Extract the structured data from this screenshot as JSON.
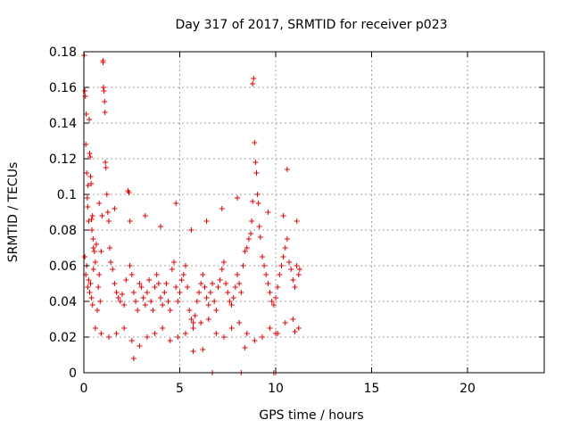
{
  "chart_data": {
    "type": "scatter",
    "title": "Day 317 of 2017, SRMTID for receiver p023",
    "xlabel": "GPS time / hours",
    "ylabel": "SRMTID / TECUs",
    "xlim": [
      0,
      24
    ],
    "ylim": [
      0,
      0.18
    ],
    "x_ticks": [
      0,
      5,
      10,
      15,
      20
    ],
    "x_tick_labels": [
      "0",
      "5",
      "10",
      "15",
      "20"
    ],
    "y_ticks": [
      0,
      0.02,
      0.04,
      0.06,
      0.08,
      0.1,
      0.12,
      0.14,
      0.16,
      0.18
    ],
    "y_tick_labels": [
      "0",
      "0.02",
      "0.04",
      "0.06",
      "0.08",
      "0.1",
      "0.12",
      "0.14",
      "0.16",
      "0.18"
    ],
    "grid": true,
    "marker": "+",
    "color": "#e00000",
    "series": [
      {
        "name": "SRMTID",
        "x": [
          0.02,
          0.05,
          0.08,
          0.1,
          0.12,
          0.15,
          0.18,
          0.2,
          0.22,
          0.25,
          0.28,
          0.3,
          0.33,
          0.35,
          0.38,
          0.4,
          0.42,
          0.45,
          0.48,
          0.5,
          0.05,
          0.1,
          0.15,
          0.2,
          0.25,
          0.3,
          0.35,
          0.4,
          0.45,
          0.5,
          0.55,
          0.6,
          0.65,
          0.7,
          0.75,
          0.8,
          0.85,
          0.9,
          0.95,
          1.0,
          1.0,
          1.02,
          1.05,
          1.08,
          1.1,
          1.12,
          1.15,
          1.2,
          1.25,
          1.3,
          1.35,
          1.4,
          1.5,
          1.6,
          1.7,
          1.8,
          1.9,
          2.0,
          2.1,
          2.2,
          2.3,
          2.35,
          2.4,
          2.5,
          2.6,
          2.7,
          2.8,
          2.9,
          3.0,
          3.1,
          3.2,
          3.3,
          3.4,
          3.5,
          3.6,
          3.7,
          3.8,
          3.9,
          4.0,
          4.1,
          4.2,
          4.3,
          4.4,
          4.5,
          4.6,
          4.7,
          4.8,
          4.9,
          5.0,
          5.1,
          5.2,
          5.3,
          5.4,
          5.5,
          5.6,
          5.7,
          5.8,
          5.9,
          6.0,
          6.1,
          6.2,
          6.3,
          6.4,
          6.5,
          6.6,
          6.7,
          6.8,
          6.9,
          7.0,
          7.1,
          7.2,
          7.3,
          7.4,
          7.5,
          7.6,
          7.7,
          7.8,
          7.9,
          8.0,
          8.1,
          8.2,
          8.3,
          8.4,
          8.5,
          8.6,
          8.7,
          8.75,
          8.8,
          8.85,
          8.9,
          8.95,
          9.0,
          9.05,
          9.1,
          9.15,
          9.2,
          9.3,
          9.4,
          9.5,
          9.6,
          9.7,
          9.8,
          9.9,
          10.0,
          10.1,
          10.2,
          10.3,
          10.4,
          10.5,
          10.6,
          10.7,
          10.8,
          10.9,
          11.0,
          11.1,
          11.2,
          11.25,
          0.6,
          0.9,
          1.3,
          1.7,
          2.1,
          2.5,
          2.9,
          3.3,
          3.7,
          4.1,
          4.5,
          4.9,
          5.3,
          5.7,
          6.1,
          6.5,
          6.9,
          7.3,
          7.7,
          8.1,
          8.5,
          8.9,
          9.3,
          9.7,
          10.1,
          10.5,
          10.9,
          11.2,
          0.8,
          1.6,
          2.4,
          3.2,
          4.0,
          4.8,
          5.6,
          6.4,
          7.2,
          8.0,
          8.8,
          9.6,
          10.4,
          11.1,
          2.6,
          5.7,
          6.2,
          8.4,
          10.0,
          10.6,
          11.0,
          6.7,
          8.2,
          9.9,
          10.0
        ],
        "y": [
          0.178,
          0.158,
          0.155,
          0.128,
          0.145,
          0.112,
          0.098,
          0.093,
          0.105,
          0.085,
          0.142,
          0.123,
          0.121,
          0.11,
          0.106,
          0.086,
          0.08,
          0.088,
          0.075,
          0.07,
          0.065,
          0.055,
          0.06,
          0.048,
          0.052,
          0.045,
          0.05,
          0.042,
          0.038,
          0.058,
          0.068,
          0.062,
          0.072,
          0.035,
          0.048,
          0.055,
          0.04,
          0.068,
          0.088,
          0.175,
          0.174,
          0.16,
          0.158,
          0.152,
          0.146,
          0.118,
          0.115,
          0.1,
          0.09,
          0.085,
          0.07,
          0.062,
          0.058,
          0.05,
          0.045,
          0.042,
          0.04,
          0.044,
          0.038,
          0.052,
          0.102,
          0.101,
          0.06,
          0.055,
          0.045,
          0.04,
          0.035,
          0.05,
          0.048,
          0.042,
          0.038,
          0.045,
          0.052,
          0.04,
          0.035,
          0.048,
          0.055,
          0.05,
          0.042,
          0.038,
          0.045,
          0.05,
          0.04,
          0.035,
          0.058,
          0.062,
          0.048,
          0.04,
          0.045,
          0.052,
          0.055,
          0.06,
          0.048,
          0.035,
          0.03,
          0.028,
          0.032,
          0.04,
          0.045,
          0.05,
          0.055,
          0.048,
          0.042,
          0.038,
          0.045,
          0.05,
          0.04,
          0.035,
          0.048,
          0.052,
          0.058,
          0.062,
          0.05,
          0.045,
          0.04,
          0.038,
          0.042,
          0.048,
          0.055,
          0.05,
          0.045,
          0.06,
          0.068,
          0.07,
          0.075,
          0.078,
          0.085,
          0.162,
          0.165,
          0.129,
          0.118,
          0.112,
          0.1,
          0.095,
          0.082,
          0.076,
          0.065,
          0.06,
          0.055,
          0.05,
          0.045,
          0.04,
          0.038,
          0.042,
          0.048,
          0.055,
          0.06,
          0.065,
          0.07,
          0.075,
          0.062,
          0.058,
          0.052,
          0.048,
          0.06,
          0.055,
          0.058,
          0.025,
          0.022,
          0.02,
          0.022,
          0.025,
          0.018,
          0.015,
          0.02,
          0.022,
          0.025,
          0.018,
          0.02,
          0.022,
          0.025,
          0.028,
          0.03,
          0.022,
          0.02,
          0.025,
          0.028,
          0.022,
          0.018,
          0.02,
          0.025,
          0.022,
          0.028,
          0.03,
          0.025,
          0.095,
          0.092,
          0.085,
          0.088,
          0.082,
          0.095,
          0.08,
          0.085,
          0.092,
          0.098,
          0.096,
          0.09,
          0.088,
          0.085,
          0.008,
          0.012,
          0.013,
          0.014,
          0.022,
          0.114,
          0.023,
          0.0,
          0.0,
          0.0,
          0.0
        ]
      }
    ]
  }
}
